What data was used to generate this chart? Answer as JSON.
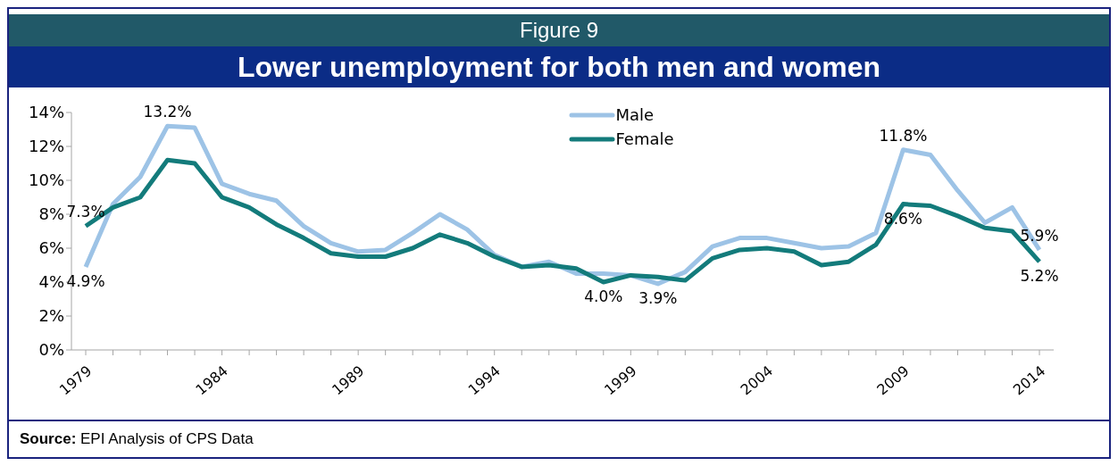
{
  "chart_data": {
    "type": "line",
    "title": "Figure 9",
    "subtitle": "Lower unemployment for both men and women",
    "categories": [
      "1979",
      null,
      null,
      null,
      null,
      "1984",
      null,
      null,
      null,
      null,
      "1989",
      null,
      null,
      null,
      null,
      "1994",
      null,
      null,
      null,
      null,
      "1999",
      null,
      null,
      null,
      null,
      "2004",
      null,
      null,
      null,
      null,
      "2009",
      null,
      null,
      null,
      null,
      "2014"
    ],
    "series": [
      {
        "name": "Male",
        "color": "#9dc3e6",
        "values": [
          4.9,
          8.6,
          10.2,
          13.2,
          13.1,
          9.8,
          9.2,
          8.8,
          7.3,
          6.3,
          5.8,
          5.9,
          6.9,
          8.0,
          7.1,
          5.6,
          4.9,
          5.2,
          4.5,
          4.5,
          4.4,
          3.9,
          4.6,
          6.1,
          6.6,
          6.6,
          6.3,
          6.0,
          6.1,
          6.9,
          11.8,
          11.5,
          9.4,
          7.5,
          8.4,
          5.9
        ],
        "value_labels": [
          "4.9%",
          null,
          null,
          "13.2%",
          null,
          null,
          null,
          null,
          null,
          null,
          null,
          null,
          null,
          null,
          null,
          null,
          null,
          null,
          null,
          null,
          null,
          "3.9%",
          null,
          null,
          null,
          null,
          null,
          null,
          null,
          null,
          "11.8%",
          null,
          null,
          null,
          null,
          "5.9%"
        ]
      },
      {
        "name": "Female",
        "color": "#137b7b",
        "values": [
          7.3,
          8.4,
          9.0,
          11.2,
          11.0,
          9.0,
          8.4,
          7.4,
          6.6,
          5.7,
          5.5,
          5.5,
          6.0,
          6.8,
          6.3,
          5.5,
          4.9,
          5.0,
          4.8,
          4.0,
          4.4,
          4.3,
          4.1,
          5.4,
          5.9,
          6.0,
          5.8,
          5.0,
          5.2,
          6.2,
          8.6,
          8.5,
          7.9,
          7.2,
          7.0,
          5.2
        ],
        "value_labels": [
          "7.3%",
          null,
          null,
          null,
          null,
          null,
          null,
          null,
          null,
          null,
          null,
          null,
          null,
          null,
          null,
          null,
          null,
          null,
          null,
          "4.0%",
          null,
          null,
          null,
          null,
          null,
          null,
          null,
          null,
          null,
          null,
          "8.6%",
          null,
          null,
          null,
          null,
          "5.2%"
        ]
      }
    ],
    "ylim": [
      0,
      14
    ],
    "yticks": [
      {
        "value": 0,
        "label": "0%"
      },
      {
        "value": 2,
        "label": "2%"
      },
      {
        "value": 4,
        "label": "4%"
      },
      {
        "value": 6,
        "label": "6%"
      },
      {
        "value": 8,
        "label": "8%"
      },
      {
        "value": 10,
        "label": "10%"
      },
      {
        "value": 12,
        "label": "12%"
      },
      {
        "value": 14,
        "label": "14%"
      }
    ],
    "grid": false,
    "legend": "top",
    "marker": "none",
    "line_style": "solid",
    "annotations": [
      "Source: EPI Analysis of CPS Data"
    ]
  }
}
